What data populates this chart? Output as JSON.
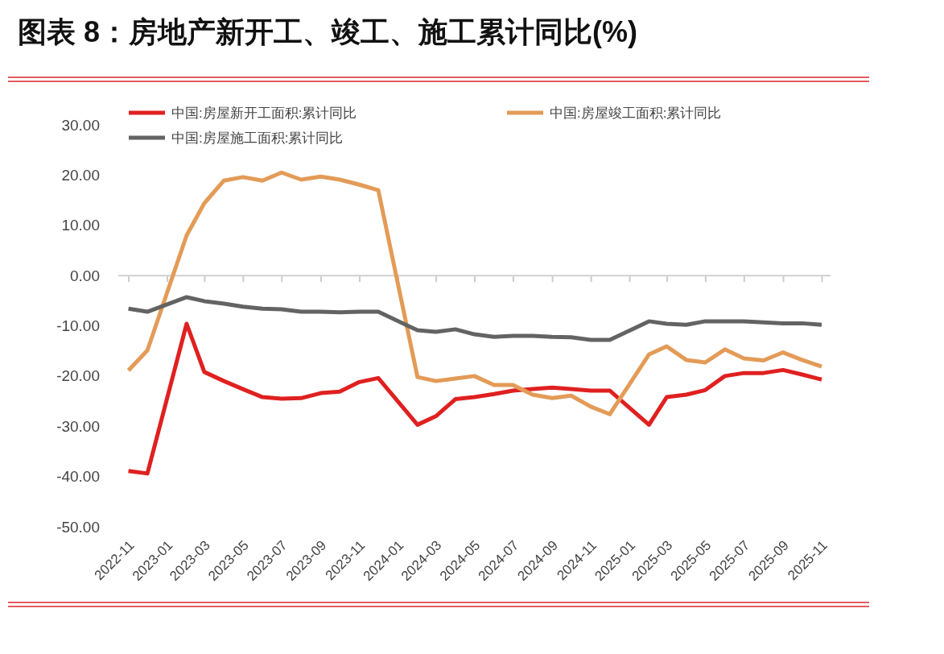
{
  "chart_data": {
    "type": "line",
    "title": "图表 8：房地产新开工、竣工、施工累计同比(%)",
    "x": [
      "2022-11",
      "2022-12",
      "2023-02",
      "2023-03",
      "2023-04",
      "2023-05",
      "2023-06",
      "2023-07",
      "2023-08",
      "2023-09",
      "2023-10",
      "2023-11",
      "2023-12",
      "2024-02",
      "2024-03",
      "2024-04",
      "2024-05",
      "2024-06",
      "2024-07",
      "2024-08",
      "2024-09",
      "2024-10",
      "2024-11",
      "2024-12",
      "2025-02",
      "2025-03",
      "2025-04",
      "2025-05",
      "2025-06",
      "2025-07",
      "2025-08",
      "2025-09",
      "2025-10",
      "2025-11"
    ],
    "series": [
      {
        "name": "中国:房屋新开工面积:累计同比",
        "color": "#e02020",
        "values": [
          -38.9,
          -39.4,
          -9.6,
          -19.2,
          -21.0,
          -22.6,
          -24.2,
          -24.5,
          -24.4,
          -23.4,
          -23.1,
          -21.2,
          -20.4,
          -29.7,
          -28.0,
          -24.6,
          -24.2,
          -23.6,
          -22.9,
          -22.6,
          -22.3,
          -22.6,
          -22.9,
          -22.9,
          -29.7,
          -24.2,
          -23.7,
          -22.8,
          -20.0,
          -19.4,
          -19.4,
          -18.8,
          -19.7,
          -20.7
        ]
      },
      {
        "name": "中国:房屋竣工面积:累计同比",
        "color": "#e39b57",
        "values": [
          -18.9,
          -14.9,
          8.0,
          14.4,
          18.9,
          19.6,
          18.9,
          20.5,
          19.1,
          19.7,
          19.1,
          18.1,
          17.0,
          -20.2,
          -21.0,
          -20.5,
          -20.0,
          -21.8,
          -21.8,
          -23.7,
          -24.4,
          -23.9,
          -26.1,
          -27.6,
          -15.7,
          -14.1,
          -16.8,
          -17.3,
          -14.7,
          -16.5,
          -16.9,
          -15.3,
          -16.8,
          -18.1
        ]
      },
      {
        "name": "中国:房屋施工面积:累计同比",
        "color": "#636363",
        "values": [
          -6.6,
          -7.2,
          -4.3,
          -5.1,
          -5.6,
          -6.2,
          -6.6,
          -6.7,
          -7.2,
          -7.2,
          -7.3,
          -7.2,
          -7.2,
          -10.9,
          -11.2,
          -10.7,
          -11.7,
          -12.2,
          -12.0,
          -12.0,
          -12.2,
          -12.3,
          -12.8,
          -12.8,
          -9.1,
          -9.6,
          -9.8,
          -9.1,
          -9.1,
          -9.1,
          -9.3,
          -9.5,
          -9.5,
          -9.8
        ]
      }
    ],
    "xlim": [
      "2022-10-16",
      "2025-11-15"
    ],
    "xticks": [
      "2022-11",
      "2023-01",
      "2023-03",
      "2023-05",
      "2023-07",
      "2023-09",
      "2023-11",
      "2024-01",
      "2024-03",
      "2024-05",
      "2024-07",
      "2024-09",
      "2024-11",
      "2025-01",
      "2025-03",
      "2025-05",
      "2025-07",
      "2025-09",
      "2025-11"
    ],
    "ylim": [
      -50,
      30
    ],
    "yticks": [
      {
        "value": -50,
        "label": "-50.00"
      },
      {
        "value": -40,
        "label": "-40.00"
      },
      {
        "value": -30,
        "label": "-30.00"
      },
      {
        "value": -20,
        "label": "-20.00"
      },
      {
        "value": -10,
        "label": "-10.00"
      },
      {
        "value": 0,
        "label": "0.00"
      },
      {
        "value": 10,
        "label": "10.00"
      },
      {
        "value": 20,
        "label": "20.00"
      },
      {
        "value": 30,
        "label": "30.00"
      }
    ],
    "ref_lines": [
      {
        "axis": "y",
        "value": 0,
        "color": "#d0d0d0"
      }
    ],
    "legend": "top",
    "grid": false,
    "marker": "none",
    "line_style": "solid"
  }
}
